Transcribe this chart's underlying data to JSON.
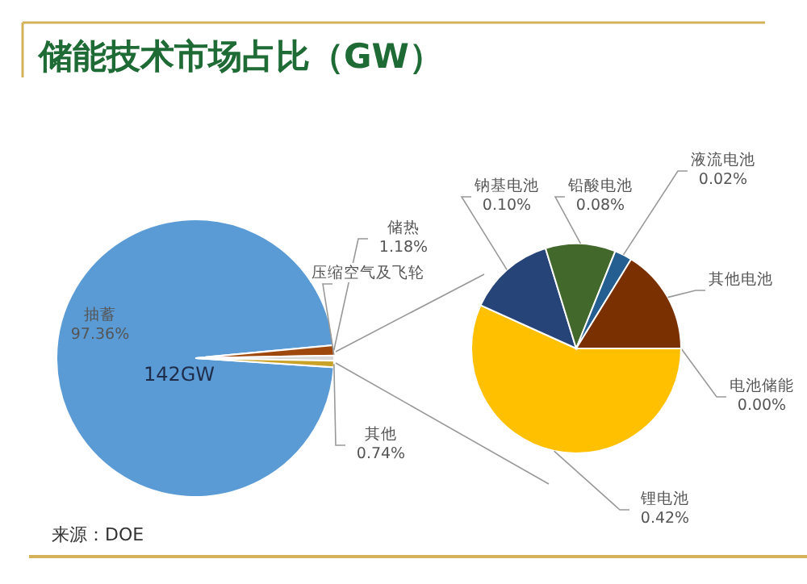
{
  "chart_data": [
    {
      "type": "pie",
      "title": "储能技术市场占比（GW）",
      "annotations": [
        "142GW",
        "来源：DOE"
      ],
      "categories": [
        "抽蓄",
        "储热",
        "压缩空气及飞轮",
        null,
        "其他"
      ],
      "values": [
        97.36,
        1.18,
        null,
        0.62,
        0.74
      ],
      "value_labels": [
        "97.36%",
        "1.18%",
        null,
        null,
        "0.74%"
      ],
      "colors": [
        "#5b9bd5",
        "#9e480e",
        "#a5a5a5",
        "#d9d9d9",
        "#c9a227"
      ]
    },
    {
      "type": "pie",
      "categories": [
        "电池储能",
        "锂电池",
        "钠基电池",
        "铅酸电池",
        "液流电池",
        "其他电池"
      ],
      "values": [
        0,
        0.42,
        0.1,
        0.08,
        0.02,
        0.12
      ],
      "value_labels": [
        "0.00%",
        "0.42%",
        "0.10%",
        "0.08%",
        "0.02%",
        null
      ],
      "colors": [
        "#70ad47",
        "#ffc000",
        "#264478",
        "#43682b",
        "#255e91",
        "#7a3000"
      ]
    }
  ]
}
